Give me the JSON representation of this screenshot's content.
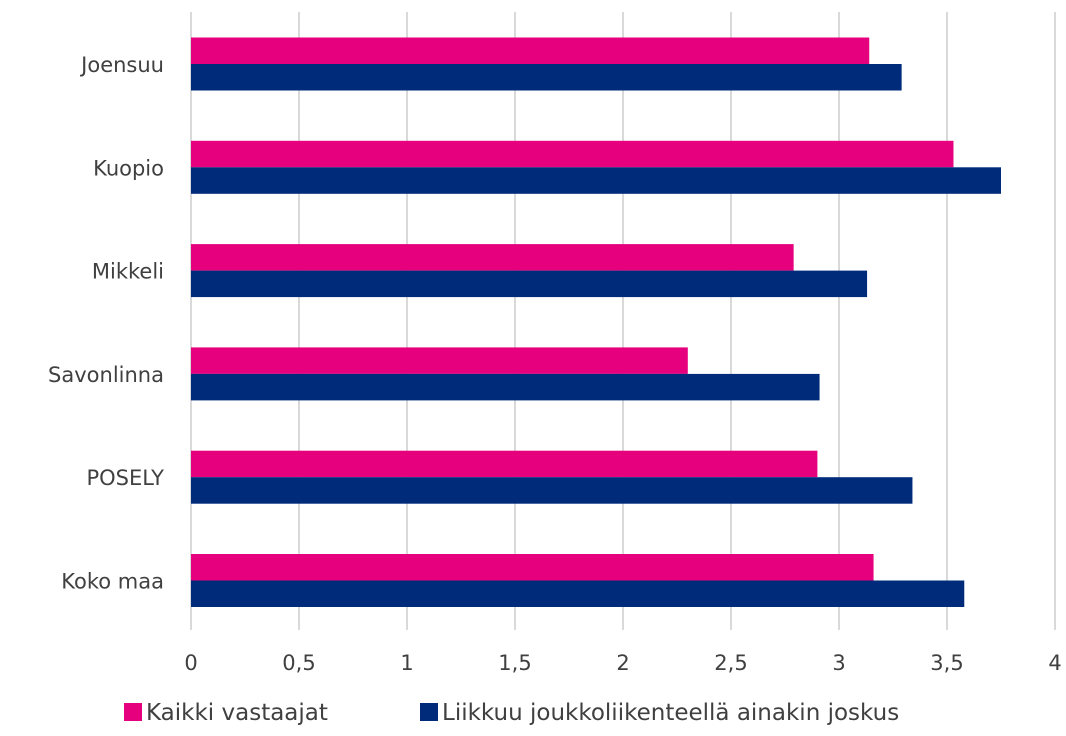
{
  "chart_data": {
    "type": "bar",
    "orientation": "horizontal",
    "categories": [
      "Joensuu",
      "Kuopio",
      "Mikkeli",
      "Savonlinna",
      "POSELY",
      "Koko maa"
    ],
    "series": [
      {
        "name": "Kaikki vastaajat",
        "color": "#e6007e",
        "values": [
          3.14,
          3.53,
          2.79,
          2.3,
          2.9,
          3.16
        ]
      },
      {
        "name": "Liikkuu joukkoliikenteellä ainakin joskus",
        "color": "#002b7a",
        "values": [
          3.29,
          3.75,
          3.13,
          2.91,
          3.34,
          3.58
        ]
      }
    ],
    "xlim": [
      0,
      4
    ],
    "x_ticks": [
      "0",
      "0,5",
      "1",
      "1,5",
      "2",
      "2,5",
      "3",
      "3,5",
      "4"
    ],
    "x_tick_values": [
      0,
      0.5,
      1,
      1.5,
      2,
      2.5,
      3,
      3.5,
      4
    ],
    "grid": "vertical",
    "legend_position": "bottom",
    "title": "",
    "xlabel": "",
    "ylabel": ""
  }
}
